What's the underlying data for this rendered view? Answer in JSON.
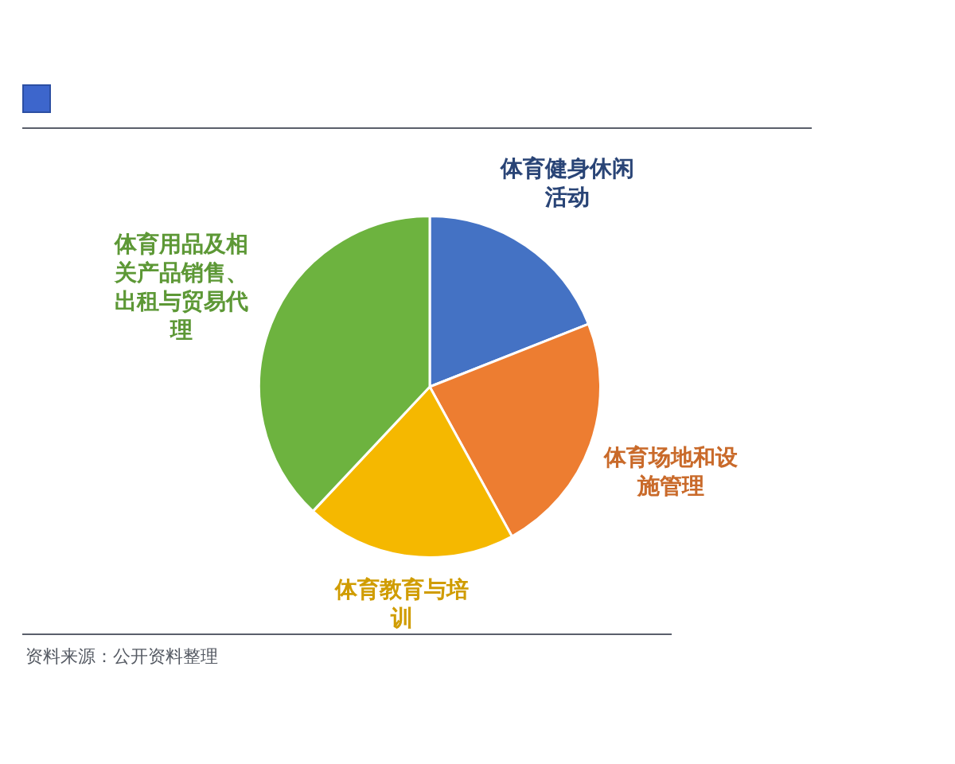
{
  "chart_data": {
    "type": "pie",
    "categories": [
      "体育健身休闲活动",
      "体育场地和设施管理",
      "体育教育与培训",
      "体育用品及相关产品销售、出租与贸易代理"
    ],
    "values": [
      19,
      23,
      20,
      38
    ],
    "colors": [
      "#4472c4",
      "#ed7d31",
      "#f5b800",
      "#6db33f"
    ],
    "annotations": [
      "资料来源：公开资料整理"
    ]
  }
}
